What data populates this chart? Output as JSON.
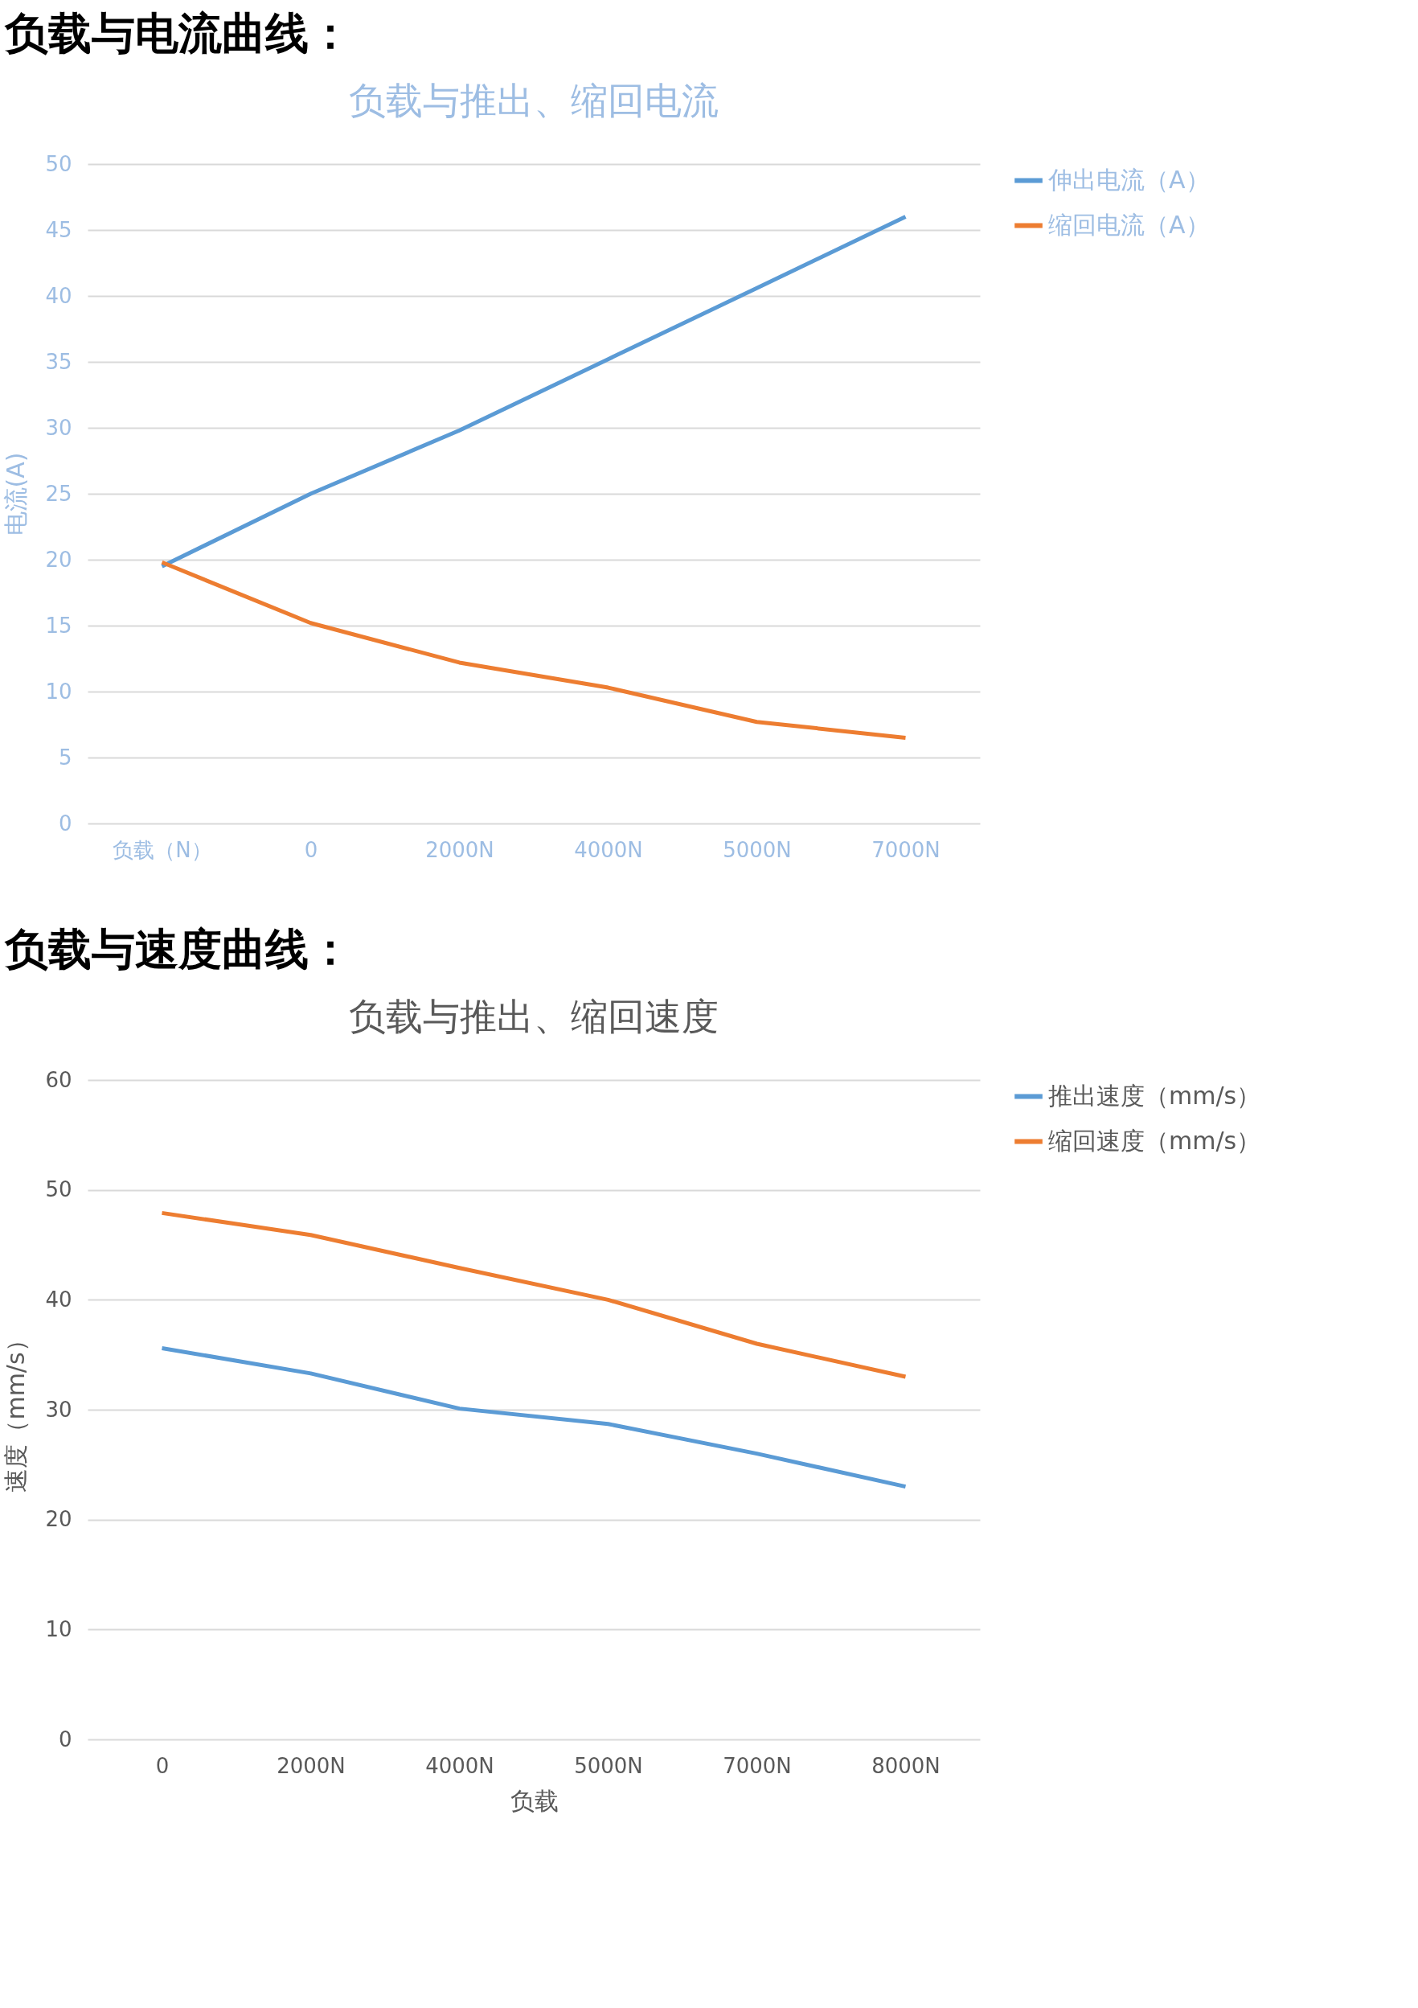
{
  "chart_data": [
    {
      "type": "line",
      "title": "负载与推出、缩回电流",
      "ylabel": "电流(A)",
      "annotations": [
        "负载与电流曲线："
      ],
      "categories": [
        "负载（N）",
        "0",
        "2000N",
        "4000N",
        "5000N",
        "7000N"
      ],
      "ylim": [
        0,
        50
      ],
      "yticks": [
        0,
        5,
        10,
        15,
        20,
        25,
        30,
        35,
        40,
        45,
        50
      ],
      "grid": "y",
      "legend": "right",
      "series": [
        {
          "name": "伸出电流（A）",
          "color": "#5b9bd5",
          "values": [
            19.5,
            25,
            29.8,
            35.2,
            40.6,
            46
          ]
        },
        {
          "name": "缩回电流（A）",
          "color": "#ed7d31",
          "values": [
            19.8,
            15.2,
            12.2,
            10.3,
            7.7,
            6.5
          ]
        }
      ]
    },
    {
      "type": "line",
      "title": "负载与推出、缩回速度",
      "ylabel": "速度（mm/s）",
      "xlabel": "负载",
      "annotations": [
        "负载与速度曲线："
      ],
      "categories": [
        "0",
        "2000N",
        "4000N",
        "5000N",
        "7000N",
        "8000N"
      ],
      "ylim": [
        0,
        60
      ],
      "yticks": [
        0,
        10,
        20,
        30,
        40,
        50,
        60
      ],
      "grid": "y",
      "legend": "right",
      "series": [
        {
          "name": "推出速度（mm/s）",
          "color": "#5b9bd5",
          "values": [
            35.6,
            33.3,
            30.1,
            28.7,
            26,
            23
          ]
        },
        {
          "name": "缩回速度（mm/s）",
          "color": "#ed7d31",
          "values": [
            47.9,
            45.9,
            42.9,
            40,
            36,
            33
          ]
        }
      ]
    }
  ]
}
